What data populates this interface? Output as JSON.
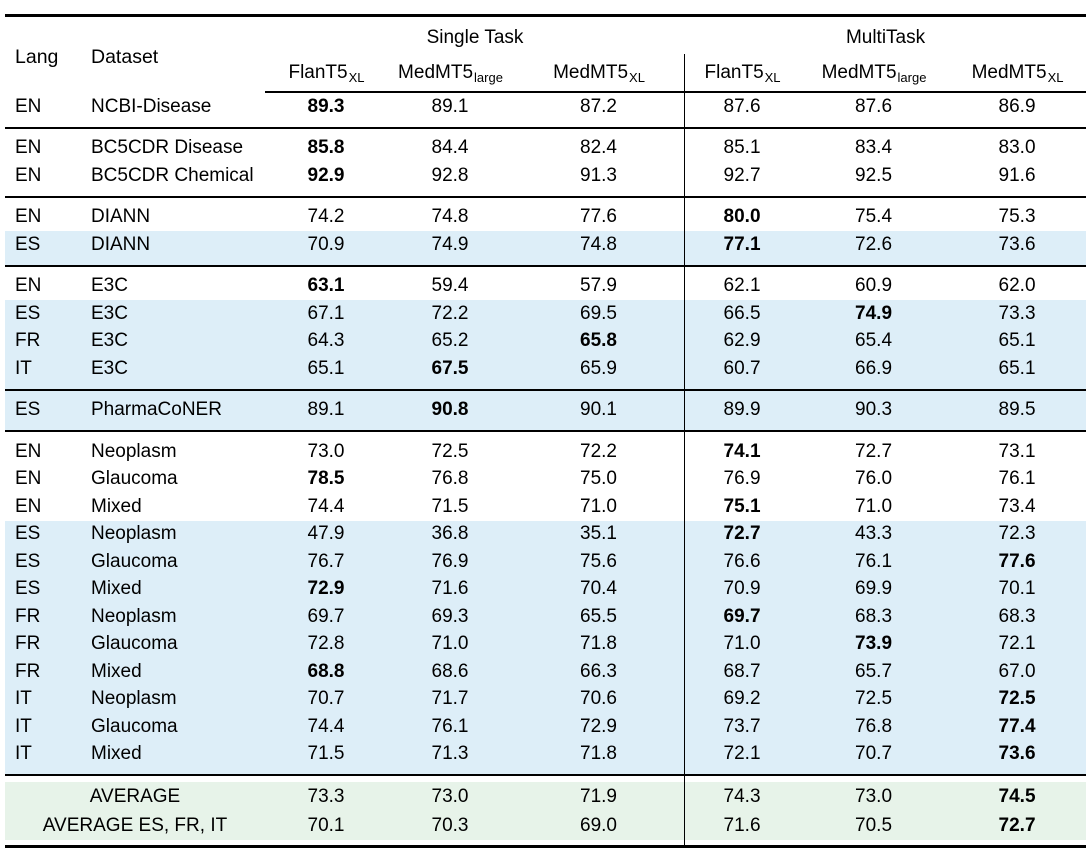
{
  "table": {
    "header": {
      "lang": "Lang",
      "dataset": "Dataset",
      "single_task": "Single Task",
      "multi_task": "MultiTask",
      "models": [
        {
          "base": "FlanT5",
          "sub": "XL"
        },
        {
          "base": "MedMT5",
          "sub": "large"
        },
        {
          "base": "MedMT5",
          "sub": "XL"
        },
        {
          "base": "FlanT5",
          "sub": "XL"
        },
        {
          "base": "MedMT5",
          "sub": "large"
        },
        {
          "base": "MedMT5",
          "sub": "XL"
        }
      ]
    },
    "groups": [
      {
        "rows": [
          {
            "lang": "EN",
            "dataset": "NCBI-Disease",
            "values": [
              "89.3",
              "89.1",
              "87.2",
              "87.6",
              "87.6",
              "86.9"
            ],
            "bold": 0,
            "shaded": false
          }
        ]
      },
      {
        "rows": [
          {
            "lang": "EN",
            "dataset": "BC5CDR Disease",
            "values": [
              "85.8",
              "84.4",
              "82.4",
              "85.1",
              "83.4",
              "83.0"
            ],
            "bold": 0,
            "shaded": false
          },
          {
            "lang": "EN",
            "dataset": "BC5CDR Chemical",
            "values": [
              "92.9",
              "92.8",
              "91.3",
              "92.7",
              "92.5",
              "91.6"
            ],
            "bold": 0,
            "shaded": false
          }
        ]
      },
      {
        "rows": [
          {
            "lang": "EN",
            "dataset": "DIANN",
            "values": [
              "74.2",
              "74.8",
              "77.6",
              "80.0",
              "75.4",
              "75.3"
            ],
            "bold": 3,
            "shaded": false
          },
          {
            "lang": "ES",
            "dataset": "DIANN",
            "values": [
              "70.9",
              "74.9",
              "74.8",
              "77.1",
              "72.6",
              "73.6"
            ],
            "bold": 3,
            "shaded": true
          }
        ]
      },
      {
        "rows": [
          {
            "lang": "EN",
            "dataset": "E3C",
            "values": [
              "63.1",
              "59.4",
              "57.9",
              "62.1",
              "60.9",
              "62.0"
            ],
            "bold": 0,
            "shaded": false
          },
          {
            "lang": "ES",
            "dataset": "E3C",
            "values": [
              "67.1",
              "72.2",
              "69.5",
              "66.5",
              "74.9",
              "73.3"
            ],
            "bold": 4,
            "shaded": true
          },
          {
            "lang": "FR",
            "dataset": "E3C",
            "values": [
              "64.3",
              "65.2",
              "65.8",
              "62.9",
              "65.4",
              "65.1"
            ],
            "bold": 2,
            "shaded": true
          },
          {
            "lang": "IT",
            "dataset": "E3C",
            "values": [
              "65.1",
              "67.5",
              "65.9",
              "60.7",
              "66.9",
              "65.1"
            ],
            "bold": 1,
            "shaded": true
          }
        ]
      },
      {
        "rows": [
          {
            "lang": "ES",
            "dataset": "PharmaCoNER",
            "values": [
              "89.1",
              "90.8",
              "90.1",
              "89.9",
              "90.3",
              "89.5"
            ],
            "bold": 1,
            "shaded": true
          }
        ]
      },
      {
        "rows": [
          {
            "lang": "EN",
            "dataset": "Neoplasm",
            "values": [
              "73.0",
              "72.5",
              "72.2",
              "74.1",
              "72.7",
              "73.1"
            ],
            "bold": 3,
            "shaded": false
          },
          {
            "lang": "EN",
            "dataset": "Glaucoma",
            "values": [
              "78.5",
              "76.8",
              "75.0",
              "76.9",
              "76.0",
              "76.1"
            ],
            "bold": 0,
            "shaded": false
          },
          {
            "lang": "EN",
            "dataset": "Mixed",
            "values": [
              "74.4",
              "71.5",
              "71.0",
              "75.1",
              "71.0",
              "73.4"
            ],
            "bold": 3,
            "shaded": false
          },
          {
            "lang": "ES",
            "dataset": "Neoplasm",
            "values": [
              "47.9",
              "36.8",
              "35.1",
              "72.7",
              "43.3",
              "72.3"
            ],
            "bold": 3,
            "shaded": true
          },
          {
            "lang": "ES",
            "dataset": "Glaucoma",
            "values": [
              "76.7",
              "76.9",
              "75.6",
              "76.6",
              "76.1",
              "77.6"
            ],
            "bold": 5,
            "shaded": true
          },
          {
            "lang": "ES",
            "dataset": "Mixed",
            "values": [
              "72.9",
              "71.6",
              "70.4",
              "70.9",
              "69.9",
              "70.1"
            ],
            "bold": 0,
            "shaded": true
          },
          {
            "lang": "FR",
            "dataset": "Neoplasm",
            "values": [
              "69.7",
              "69.3",
              "65.5",
              "69.7",
              "68.3",
              "68.3"
            ],
            "bold": 3,
            "shaded": true
          },
          {
            "lang": "FR",
            "dataset": "Glaucoma",
            "values": [
              "72.8",
              "71.0",
              "71.8",
              "71.0",
              "73.9",
              "72.1"
            ],
            "bold": 4,
            "shaded": true
          },
          {
            "lang": "FR",
            "dataset": "Mixed",
            "values": [
              "68.8",
              "68.6",
              "66.3",
              "68.7",
              "65.7",
              "67.0"
            ],
            "bold": 0,
            "shaded": true
          },
          {
            "lang": "IT",
            "dataset": "Neoplasm",
            "values": [
              "70.7",
              "71.7",
              "70.6",
              "69.2",
              "72.5",
              "72.5"
            ],
            "bold": 5,
            "shaded": true
          },
          {
            "lang": "IT",
            "dataset": "Glaucoma",
            "values": [
              "74.4",
              "76.1",
              "72.9",
              "73.7",
              "76.8",
              "77.4"
            ],
            "bold": 5,
            "shaded": true
          },
          {
            "lang": "IT",
            "dataset": "Mixed",
            "values": [
              "71.5",
              "71.3",
              "71.8",
              "72.1",
              "70.7",
              "73.6"
            ],
            "bold": 5,
            "shaded": true
          }
        ]
      }
    ],
    "footer_rows": [
      {
        "label": "AVERAGE",
        "values": [
          "73.3",
          "73.0",
          "71.9",
          "74.3",
          "73.0",
          "74.5"
        ],
        "bold": 5
      },
      {
        "label": "AVERAGE ES, FR, IT",
        "values": [
          "70.1",
          "70.3",
          "69.0",
          "71.6",
          "70.5",
          "72.7"
        ],
        "bold": 5
      }
    ],
    "colors": {
      "shade_blue": "#ddeef8",
      "shade_green": "#e7f3e9",
      "rule": "#000000"
    }
  }
}
